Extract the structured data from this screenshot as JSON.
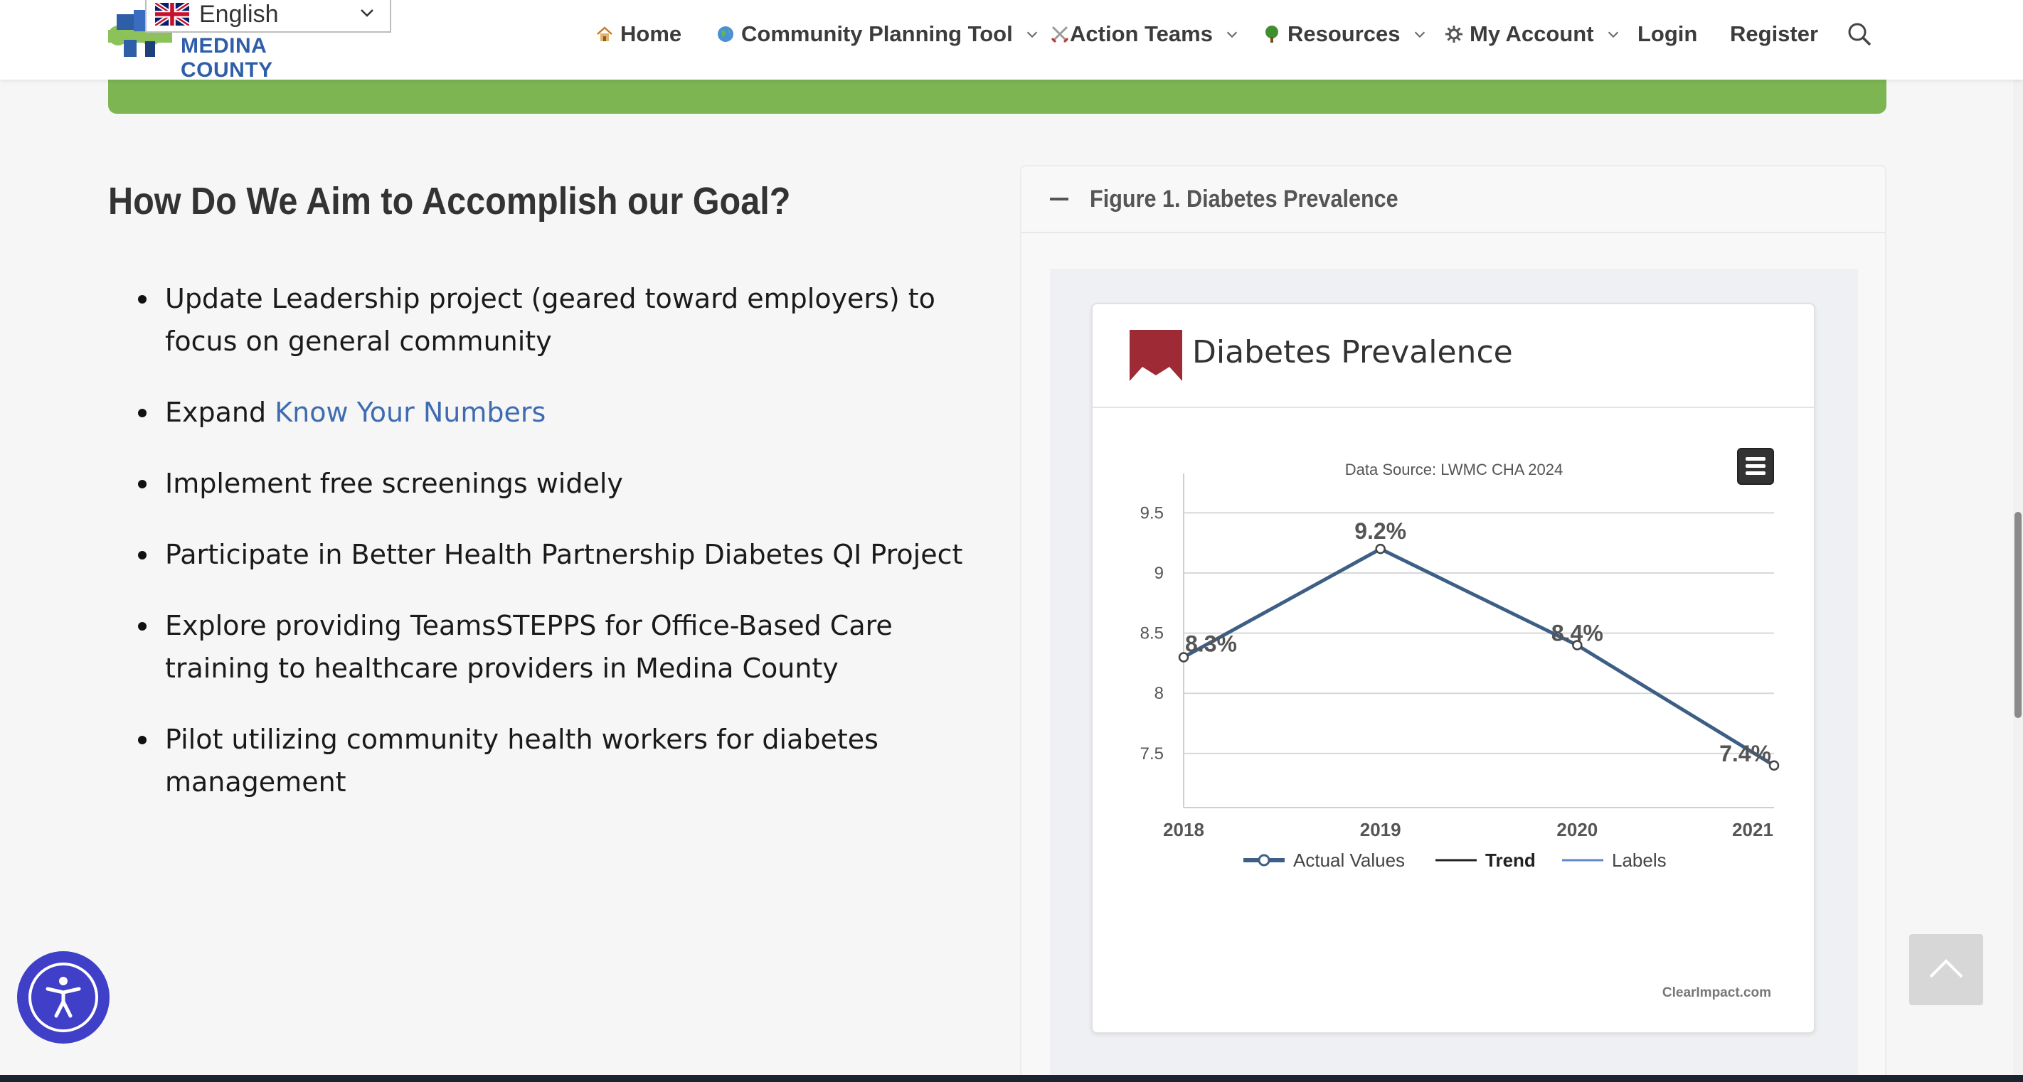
{
  "header": {
    "logo_text": "MEDINA COUNTY",
    "language": "English",
    "nav": [
      {
        "label": "Home",
        "icon": "house-icon",
        "dropdown": false
      },
      {
        "label": "Community Planning Tool",
        "icon": "globe-icon",
        "dropdown": true
      },
      {
        "label": "Action Teams",
        "icon": "crossed-swords-icon",
        "dropdown": true
      },
      {
        "label": "Resources",
        "icon": "tree-icon",
        "dropdown": true
      },
      {
        "label": "My Account",
        "icon": "gear-icon",
        "dropdown": true
      },
      {
        "label": "Login",
        "icon": "",
        "dropdown": false
      },
      {
        "label": "Register",
        "icon": "",
        "dropdown": false
      }
    ]
  },
  "main": {
    "heading": "How Do We Aim to Accomplish our Goal?",
    "goals": [
      {
        "text": "Update Leadership project (geared toward employers) to focus on general community"
      },
      {
        "prefix": "Expand ",
        "link": "Know Your Numbers"
      },
      {
        "text": "Implement free screenings widely"
      },
      {
        "text": "Participate in Better Health Partnership Diabetes QI Project"
      },
      {
        "text": "Explore providing TeamsSTEPPS for Office-Based Care training to healthcare providers in Medina County"
      },
      {
        "text": "Pilot utilizing community health workers for diabetes management"
      }
    ]
  },
  "panel": {
    "title": "Figure 1. Diabetes Prevalence",
    "card_title": "Diabetes Prevalence",
    "credit": "ClearImpact.com"
  },
  "chart_data": {
    "type": "line",
    "subtitle": "Data Source: LWMC CHA 2024",
    "categories": [
      "2018",
      "2019",
      "2020",
      "2021"
    ],
    "series": [
      {
        "name": "Actual Values",
        "values": [
          8.3,
          9.2,
          8.4,
          7.4
        ]
      }
    ],
    "data_labels": [
      "8.3%",
      "9.2%",
      "8.4%",
      "7.4%"
    ],
    "yticks": [
      "7.5",
      "8",
      "8.5",
      "9",
      "9.5"
    ],
    "ylim": [
      7.05,
      9.65
    ],
    "legend": [
      "Actual Values",
      "Trend",
      "Labels"
    ],
    "legend_position": "bottom",
    "grid": true,
    "line_color": "#3e5f85"
  },
  "accessibility_label": "",
  "colors": {
    "green_band": "#7db553",
    "link": "#3f6cb0",
    "accessibility": "#3f3fc8",
    "card_icon": "#9e2a35"
  }
}
